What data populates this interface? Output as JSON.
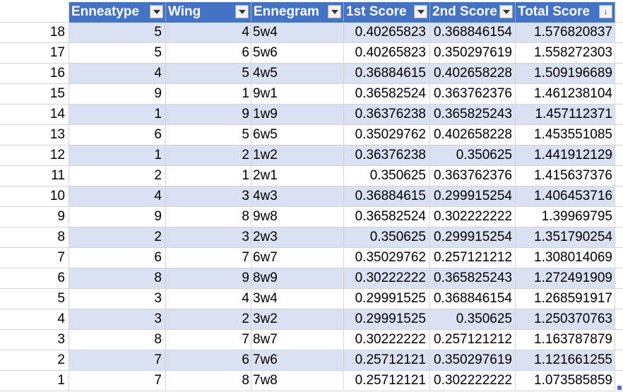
{
  "table": {
    "headers": [
      "Enneatype",
      "Wing",
      "Ennegram",
      "1st Score",
      "2nd Score",
      "Total Score"
    ],
    "sort_indicator": "↓",
    "rows": [
      {
        "num": "18",
        "enneatype": "5",
        "wing": "4",
        "ennegram": "5w4",
        "first": "0.40265823",
        "second": "0.368846154",
        "total": "1.576820837"
      },
      {
        "num": "17",
        "enneatype": "5",
        "wing": "6",
        "ennegram": "5w6",
        "first": "0.40265823",
        "second": "0.350297619",
        "total": "1.558272303"
      },
      {
        "num": "16",
        "enneatype": "4",
        "wing": "5",
        "ennegram": "4w5",
        "first": "0.36884615",
        "second": "0.402658228",
        "total": "1.509196689"
      },
      {
        "num": "15",
        "enneatype": "9",
        "wing": "1",
        "ennegram": "9w1",
        "first": "0.36582524",
        "second": "0.363762376",
        "total": "1.461238104"
      },
      {
        "num": "14",
        "enneatype": "1",
        "wing": "9",
        "ennegram": "1w9",
        "first": "0.36376238",
        "second": "0.365825243",
        "total": "1.457112371"
      },
      {
        "num": "13",
        "enneatype": "6",
        "wing": "5",
        "ennegram": "6w5",
        "first": "0.35029762",
        "second": "0.402658228",
        "total": "1.453551085"
      },
      {
        "num": "12",
        "enneatype": "1",
        "wing": "2",
        "ennegram": "1w2",
        "first": "0.36376238",
        "second": "0.350625",
        "total": "1.441912129"
      },
      {
        "num": "11",
        "enneatype": "2",
        "wing": "1",
        "ennegram": "2w1",
        "first": "0.350625",
        "second": "0.363762376",
        "total": "1.415637376"
      },
      {
        "num": "10",
        "enneatype": "4",
        "wing": "3",
        "ennegram": "4w3",
        "first": "0.36884615",
        "second": "0.299915254",
        "total": "1.406453716"
      },
      {
        "num": "9",
        "enneatype": "9",
        "wing": "8",
        "ennegram": "9w8",
        "first": "0.36582524",
        "second": "0.302222222",
        "total": "1.39969795"
      },
      {
        "num": "8",
        "enneatype": "2",
        "wing": "3",
        "ennegram": "2w3",
        "first": "0.350625",
        "second": "0.299915254",
        "total": "1.351790254"
      },
      {
        "num": "7",
        "enneatype": "6",
        "wing": "7",
        "ennegram": "6w7",
        "first": "0.35029762",
        "second": "0.257121212",
        "total": "1.308014069"
      },
      {
        "num": "6",
        "enneatype": "8",
        "wing": "9",
        "ennegram": "8w9",
        "first": "0.30222222",
        "second": "0.365825243",
        "total": "1.272491909"
      },
      {
        "num": "5",
        "enneatype": "3",
        "wing": "4",
        "ennegram": "3w4",
        "first": "0.29991525",
        "second": "0.368846154",
        "total": "1.268591917"
      },
      {
        "num": "4",
        "enneatype": "3",
        "wing": "2",
        "ennegram": "3w2",
        "first": "0.29991525",
        "second": "0.350625",
        "total": "1.250370763"
      },
      {
        "num": "3",
        "enneatype": "8",
        "wing": "7",
        "ennegram": "8w7",
        "first": "0.30222222",
        "second": "0.257121212",
        "total": "1.163787879"
      },
      {
        "num": "2",
        "enneatype": "7",
        "wing": "6",
        "ennegram": "7w6",
        "first": "0.25712121",
        "second": "0.350297619",
        "total": "1.121661255"
      },
      {
        "num": "1",
        "enneatype": "7",
        "wing": "8",
        "ennegram": "7w8",
        "first": "0.25712121",
        "second": "0.302222222",
        "total": "1.073585859"
      }
    ]
  },
  "colors": {
    "header_bg": "#4472c4",
    "band_bg": "#d9e1f2",
    "gridline": "#d4d4d4"
  }
}
